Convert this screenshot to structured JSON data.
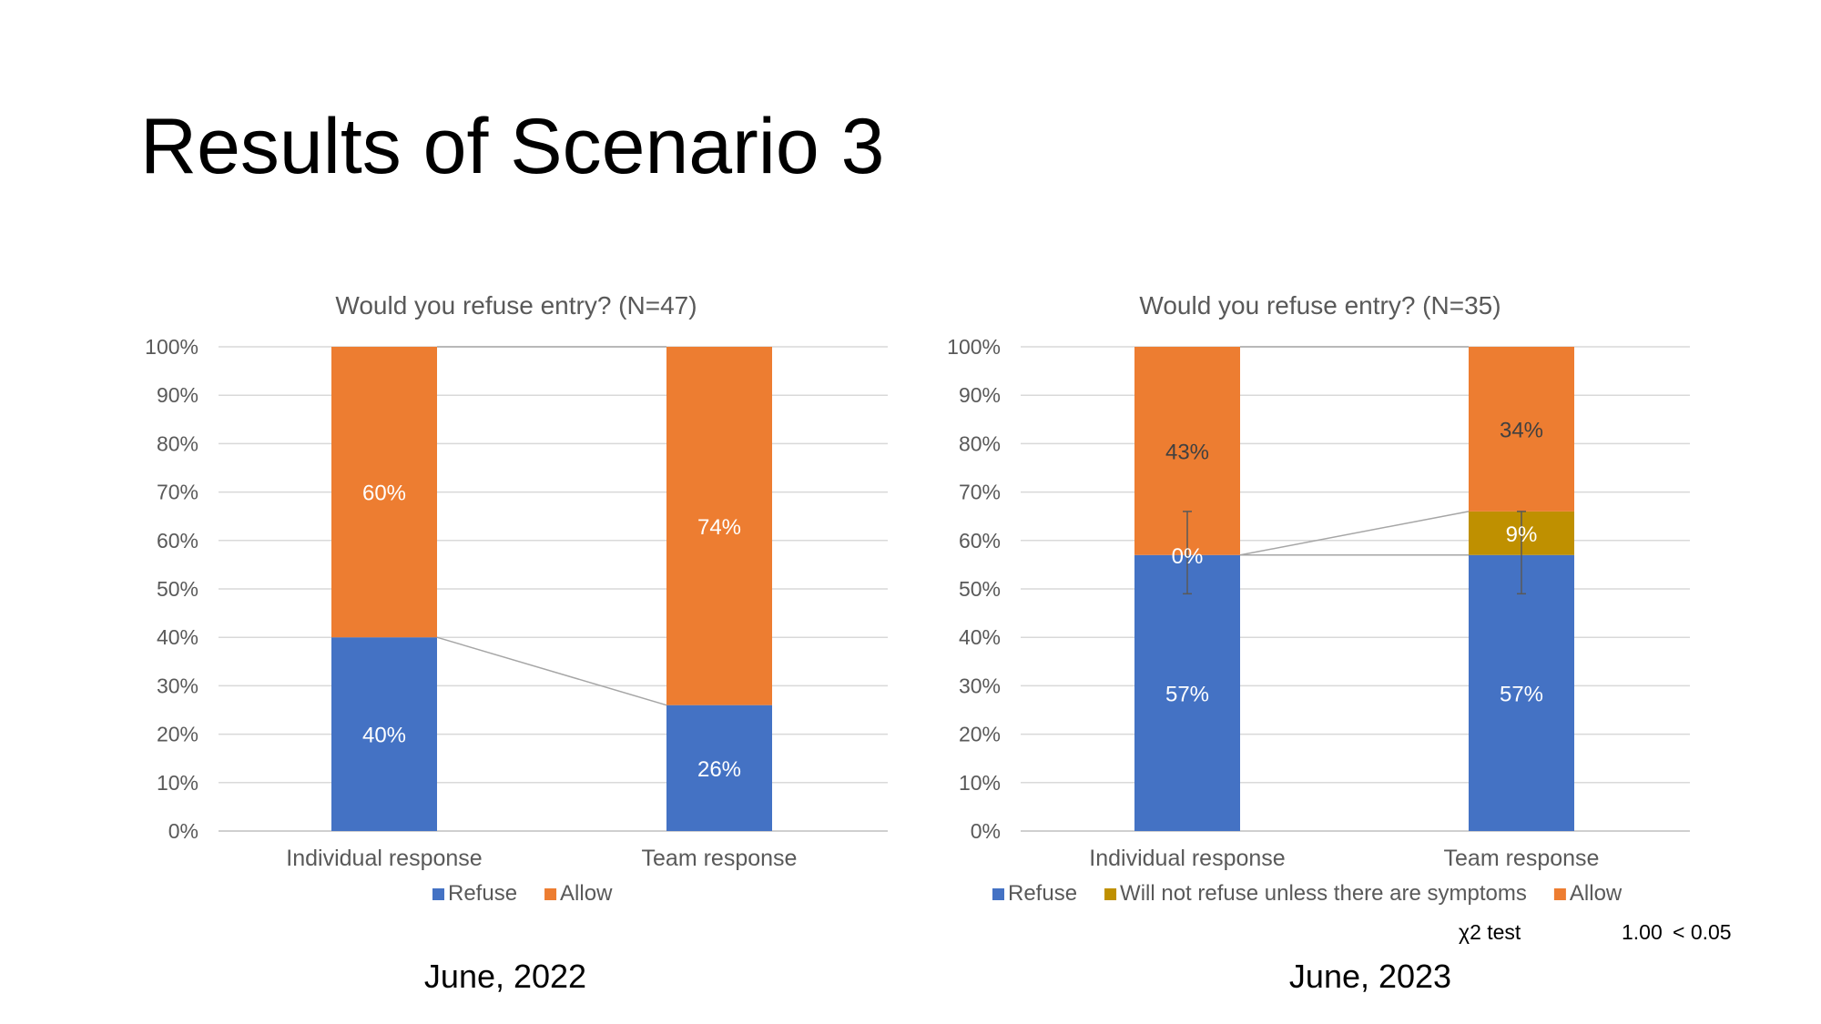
{
  "slide": {
    "title": "Results of Scenario 3",
    "captions": [
      "June, 2022",
      "June, 2023"
    ]
  },
  "colors": {
    "refuse": "#4472C4",
    "symptoms": "#BF9000",
    "allow": "#ED7D31"
  },
  "chart_data": [
    {
      "type": "bar",
      "stacked": true,
      "title": "Would you refuse entry? (N=47)",
      "categories": [
        "Individual response",
        "Team response"
      ],
      "y_ticks": [
        "0%",
        "10%",
        "20%",
        "30%",
        "40%",
        "50%",
        "60%",
        "70%",
        "80%",
        "90%",
        "100%"
      ],
      "ylim": [
        0,
        100
      ],
      "grid": true,
      "legend_position": "bottom",
      "series": [
        {
          "name": "Refuse",
          "color_key": "refuse",
          "values": [
            40,
            26
          ],
          "labels": [
            "40%",
            "26%"
          ]
        },
        {
          "name": "Allow",
          "color_key": "allow",
          "values": [
            60,
            74
          ],
          "labels": [
            "60%",
            "74%"
          ]
        }
      ]
    },
    {
      "type": "bar",
      "stacked": true,
      "title": "Would you refuse entry? (N=35)",
      "categories": [
        "Individual response",
        "Team response"
      ],
      "y_ticks": [
        "0%",
        "10%",
        "20%",
        "30%",
        "40%",
        "50%",
        "60%",
        "70%",
        "80%",
        "90%",
        "100%"
      ],
      "ylim": [
        0,
        100
      ],
      "grid": true,
      "legend_position": "bottom",
      "series": [
        {
          "name": "Refuse",
          "color_key": "refuse",
          "values": [
            57,
            57
          ],
          "labels": [
            "57%",
            "57%"
          ]
        },
        {
          "name": "Will not refuse unless there are symptoms",
          "color_key": "symptoms",
          "values": [
            0,
            9
          ],
          "labels": [
            "0%",
            "9%"
          ]
        },
        {
          "name": "Allow",
          "color_key": "allow",
          "values": [
            43,
            34
          ],
          "labels": [
            "43%",
            "34%"
          ]
        }
      ],
      "error_bars": [
        {
          "category": "Individual response",
          "low": 49,
          "high": 66
        },
        {
          "category": "Team response",
          "low": 49,
          "high": 66
        }
      ],
      "stat_test": {
        "label": "χ2 test",
        "p_value": "1.00",
        "comparison": "< 0.05"
      }
    }
  ]
}
